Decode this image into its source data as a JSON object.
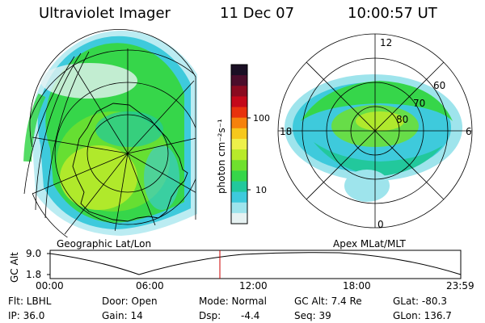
{
  "header": {
    "instrument": "Ultraviolet Imager",
    "date": "11 Dec 07",
    "time": "10:00:57 UT"
  },
  "left_panel": {
    "caption": "Geographic Lat/Lon"
  },
  "right_panel": {
    "caption": "Apex MLat/MLT",
    "mlt_labels": [
      "12",
      "18",
      "6",
      "0"
    ],
    "lat_labels": [
      "60",
      "70",
      "80"
    ]
  },
  "colorbar": {
    "unit_label": "photon cm⁻²s⁻¹",
    "ticks": [
      "100",
      "10"
    ],
    "colors": [
      "#1a0f24",
      "#4b0d2b",
      "#8a0a20",
      "#c4081a",
      "#e8320d",
      "#f6820c",
      "#f6c81c",
      "#eef04a",
      "#b8ea2a",
      "#6fe02e",
      "#36d64a",
      "#22c89c",
      "#3ecadc",
      "#9ee4ec",
      "#e6f2f2"
    ]
  },
  "alt_plot": {
    "ylabel": "GC Alt",
    "yticks": [
      "9.0",
      "1.8"
    ],
    "xticks": [
      "00:00",
      "06:00",
      "12:00",
      "18:00",
      "23:59"
    ],
    "marker_color": "#cc0000"
  },
  "info": {
    "flt": "Flt: LBHL",
    "ip": "IP: 36.0",
    "door": "Door: Open",
    "gain": "Gain: 14",
    "mode": "Mode: Normal",
    "dsp_label": "Dsp:",
    "dsp_value": "-4.4",
    "gcalt": "GC Alt: 7.4 Re",
    "seq": "Seq: 39",
    "glat": "GLat: -80.3",
    "glon": "GLon: 136.7"
  }
}
